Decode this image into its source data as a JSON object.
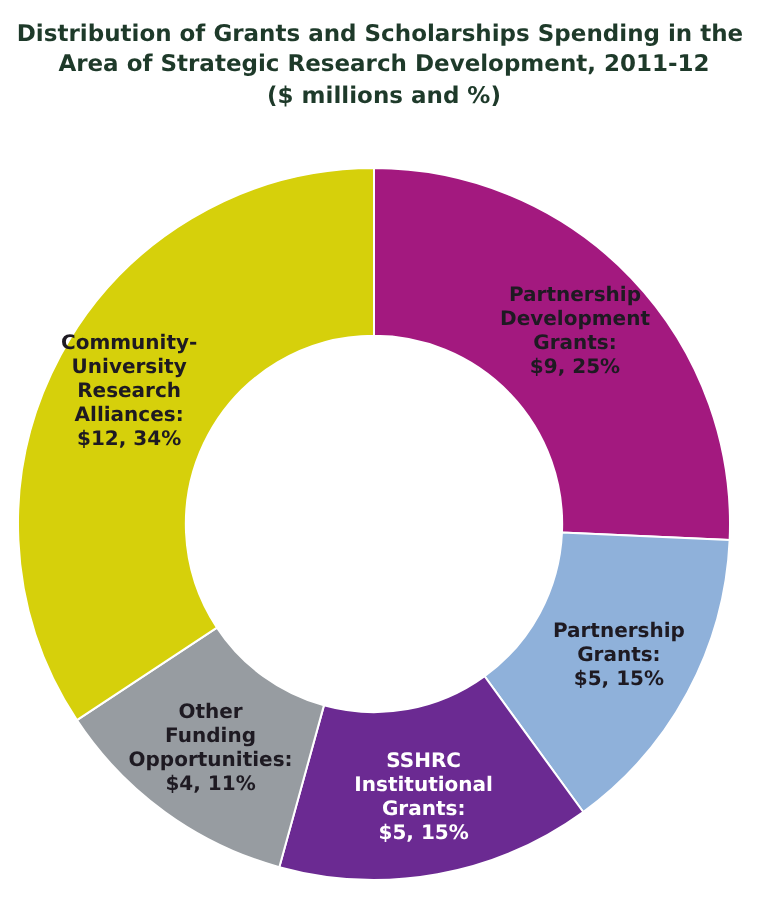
{
  "chart_data": {
    "type": "donut",
    "title": "Distribution of Grants and Scholarships Spending in the Area of Strategic Research Development, 2011-12",
    "subtitle": "($ millions and %)",
    "categories": [
      "Partnership Development Grants",
      "Partnership Grants",
      "SSHRC Institutional Grants",
      "Other Funding Opportunities",
      "Community-University Research Alliances"
    ],
    "values": [
      9,
      5,
      5,
      4,
      12
    ],
    "value_labels": [
      ": $9, 25%",
      ": $5, 15%",
      ": $5, 15%",
      ": $4, 11%",
      ": $12, 34%"
    ],
    "colors": [
      "#a3197f",
      "#8fb1da",
      "#6b2a92",
      "#979ca1",
      "#d6d00b"
    ],
    "legend": false
  }
}
